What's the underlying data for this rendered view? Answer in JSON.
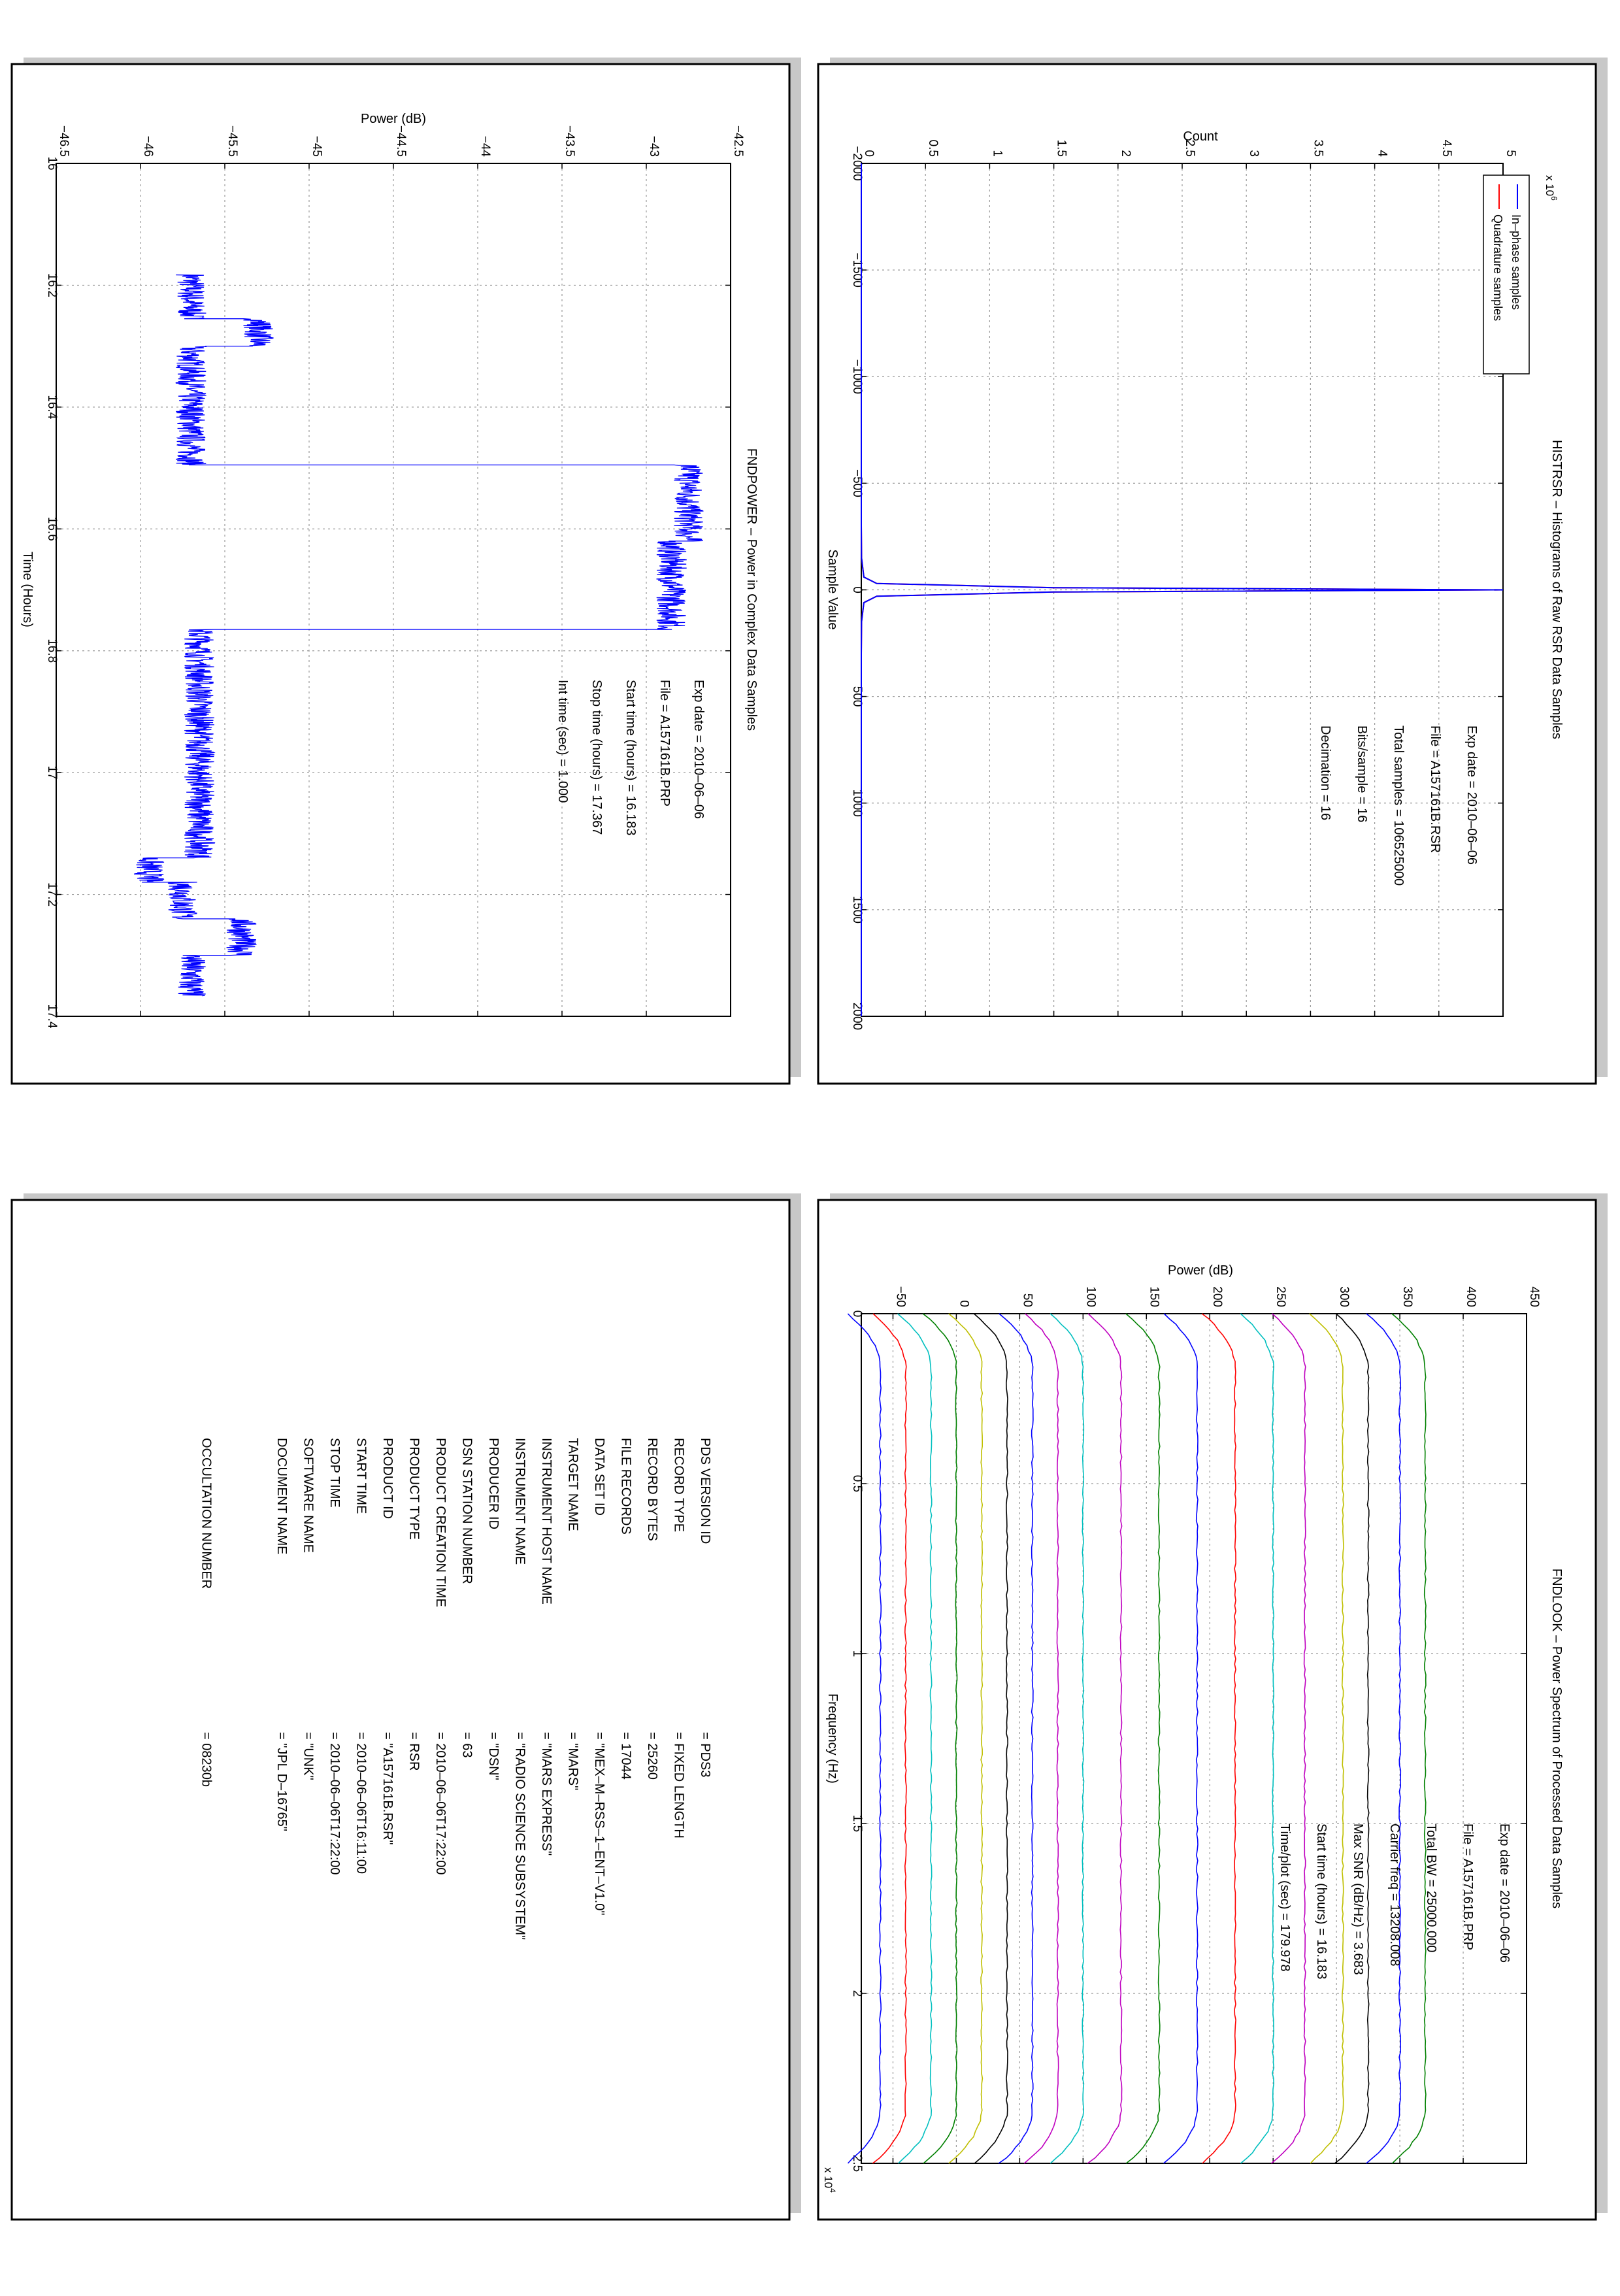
{
  "panels": {
    "histogram": {
      "title": "HISTRSR – Histograms of Raw RSR Data Samples",
      "annotation": [
        "Exp date = 2010–06–06",
        "File = A157161B.RSR",
        "Total samples =  106525000",
        "Bits/sample   =      16",
        "Decimation   =      16"
      ],
      "xlabel": "Sample Value",
      "ylabel": "Count",
      "exponent": "x 10",
      "exponent_power": "6",
      "xticks": [
        "−2000",
        "−1500",
        "−1000",
        "−500",
        "0",
        "500",
        "1000",
        "1500",
        "2000"
      ],
      "yticks": [
        "0",
        "0.5",
        "1",
        "1.5",
        "2",
        "2.5",
        "3",
        "3.5",
        "4",
        "4.5",
        "5"
      ],
      "legend": [
        "In–phase samples",
        "Quadrature samples"
      ]
    },
    "power_time": {
      "title": "FNDPOWER – Power in Complex Data Samples",
      "annotation": [
        "Exp date = 2010–06–06",
        "File = A157161B.PRP",
        "Start time (hours) = 16.183",
        "Stop time (hours)  = 17.367",
        "Int time (sec)  =    1.000"
      ],
      "xlabel": "Time (Hours)",
      "ylabel": "Power (dB)",
      "xticks": [
        "16",
        "16.2",
        "16.4",
        "16.6",
        "16.8",
        "17",
        "17.2",
        "17.4"
      ],
      "yticks": [
        "−46.5",
        "−46",
        "−45.5",
        "−45",
        "−44.5",
        "−44",
        "−43.5",
        "−43",
        "−42.5"
      ]
    },
    "spectrum": {
      "title": "FNDLOOK – Power Spectrum of Processed Data Samples",
      "annotation": [
        "Exp date = 2010–06–06",
        "File = A157161B.PRP",
        "Total BW =      25000.000",
        "Carrier freq =  13208.008",
        "Max SNR (dB/Hz) =     3.683",
        "Start time (hours) =   16.183",
        "Time/plot (sec) =    179.978"
      ],
      "xlabel": "Frequency (Hz)",
      "ylabel": "Power (dB)",
      "exponent": "x 10",
      "exponent_power": "4",
      "xticks": [
        "0",
        "0.5",
        "1",
        "1.5",
        "2",
        "2.5"
      ],
      "yticks": [
        "−50",
        "0",
        "50",
        "100",
        "150",
        "200",
        "250",
        "300",
        "350",
        "400",
        "450"
      ]
    },
    "label": {
      "rows": [
        {
          "key": "PDS VERSION ID",
          "value": "=   PDS3"
        },
        {
          "key": "RECORD TYPE",
          "value": "=   FIXED LENGTH"
        },
        {
          "key": "RECORD BYTES",
          "value": "=   25260"
        },
        {
          "key": "FILE RECORDS",
          "value": "=   17044"
        },
        {
          "key": "DATA SET ID",
          "value": "=   \"MEX–M–RSS–1–ENT–V1.0\""
        },
        {
          "key": "TARGET NAME",
          "value": "=   \"MARS\""
        },
        {
          "key": "INSTRUMENT HOST NAME",
          "value": "=   \"MARS EXPRESS\""
        },
        {
          "key": "INSTRUMENT NAME",
          "value": "=   \"RADIO SCIENCE SUBSYSTEM\""
        },
        {
          "key": "PRODUCER ID",
          "value": "=   \"DSN\""
        },
        {
          "key": "DSN STATION NUMBER",
          "value": "=   63"
        },
        {
          "key": "PRODUCT CREATION TIME",
          "value": "=   2010–06–06T17:22:00"
        },
        {
          "key": "PRODUCT TYPE",
          "value": "=   RSR"
        },
        {
          "key": "PRODUCT ID",
          "value": "=   \"A157161B.RSR\""
        },
        {
          "key": "START TIME",
          "value": "=   2010–06–06T16:11:00"
        },
        {
          "key": "STOP TIME",
          "value": "=   2010–06–06T17:22:00"
        },
        {
          "key": "SOFTWARE NAME",
          "value": "=   \"UNK\""
        },
        {
          "key": "DOCUMENT NAME",
          "value": "=   \"JPL D–16765\""
        },
        {
          "key": "OCCULTATION NUMBER",
          "value": "=   08230b"
        }
      ]
    }
  },
  "chart_data": [
    {
      "type": "line",
      "title": "HISTRSR – Histograms of Raw RSR Data Samples",
      "xlabel": "Sample Value",
      "ylabel": "Count",
      "xlim": [
        -2000,
        2000
      ],
      "ylim": [
        0,
        5000000
      ],
      "grid": true,
      "legend": "top-left",
      "series": [
        {
          "name": "In–phase samples",
          "color": "#0000ff",
          "x": [
            -2000,
            -300,
            -150,
            -60,
            -30,
            -10,
            0,
            10,
            30,
            60,
            150,
            300,
            2000
          ],
          "y": [
            0,
            0,
            2000,
            20000,
            120000,
            1500000,
            5000000,
            1500000,
            120000,
            20000,
            2000,
            0,
            0
          ]
        },
        {
          "name": "Quadrature samples",
          "color": "#ff0000",
          "x": [
            -2000,
            -300,
            -150,
            -60,
            -30,
            -10,
            0,
            10,
            30,
            60,
            150,
            300,
            2000
          ],
          "y": [
            0,
            0,
            2000,
            20000,
            120000,
            1500000,
            5000000,
            1500000,
            120000,
            20000,
            2000,
            0,
            0
          ]
        }
      ]
    },
    {
      "type": "line",
      "title": "FNDPOWER – Power in Complex Data Samples",
      "xlabel": "Time (Hours)",
      "ylabel": "Power (dB)",
      "xlim": [
        16.0,
        17.4
      ],
      "ylim": [
        -46.5,
        -42.5
      ],
      "grid": true,
      "series": [
        {
          "name": "",
          "color": "#0000ff",
          "segments": [
            {
              "x0": 16.183,
              "x1": 16.255,
              "level": -45.7
            },
            {
              "x0": 16.255,
              "x1": 16.3,
              "level": -45.3
            },
            {
              "x0": 16.3,
              "x1": 16.495,
              "level": -45.7
            },
            {
              "x0": 16.495,
              "x1": 16.62,
              "level": -42.75
            },
            {
              "x0": 16.62,
              "x1": 16.765,
              "level": -42.85
            },
            {
              "x0": 16.765,
              "x1": 17.14,
              "level": -45.65
            },
            {
              "x0": 17.14,
              "x1": 17.18,
              "level": -45.95
            },
            {
              "x0": 17.18,
              "x1": 17.24,
              "level": -45.75
            },
            {
              "x0": 17.24,
              "x1": 17.3,
              "level": -45.4
            },
            {
              "x0": 17.3,
              "x1": 17.367,
              "level": -45.7
            }
          ]
        }
      ]
    },
    {
      "type": "line",
      "title": "FNDLOOK – Power Spectrum of Processed Data Samples",
      "xlabel": "Frequency (Hz)",
      "ylabel": "Power (dB)",
      "xlim": [
        0,
        25000
      ],
      "ylim": [
        -75,
        450
      ],
      "grid": true,
      "series": [
        {
          "name": "",
          "color": "#0000ff",
          "level": -60
        },
        {
          "name": "",
          "color": "#ff0000",
          "level": -40
        },
        {
          "name": "",
          "color": "#00bfbf",
          "level": -20
        },
        {
          "name": "",
          "color": "#008000",
          "level": 0
        },
        {
          "name": "",
          "color": "#bfbf00",
          "level": 20
        },
        {
          "name": "",
          "color": "#000000",
          "level": 40
        },
        {
          "name": "",
          "color": "#0000ff",
          "level": 60
        },
        {
          "name": "",
          "color": "#bf00bf",
          "level": 80
        },
        {
          "name": "",
          "color": "#00bfbf",
          "level": 100
        },
        {
          "name": "",
          "color": "#bf00bf",
          "level": 130
        },
        {
          "name": "",
          "color": "#008000",
          "level": 160
        },
        {
          "name": "",
          "color": "#0000ff",
          "level": 190
        },
        {
          "name": "",
          "color": "#ff0000",
          "level": 220
        },
        {
          "name": "",
          "color": "#00bfbf",
          "level": 250
        },
        {
          "name": "",
          "color": "#bf00bf",
          "level": 275
        },
        {
          "name": "",
          "color": "#bfbf00",
          "level": 305
        },
        {
          "name": "",
          "color": "#000000",
          "level": 325
        },
        {
          "name": "",
          "color": "#0000ff",
          "level": 350
        },
        {
          "name": "",
          "color": "#008000",
          "level": 370
        }
      ]
    }
  ]
}
